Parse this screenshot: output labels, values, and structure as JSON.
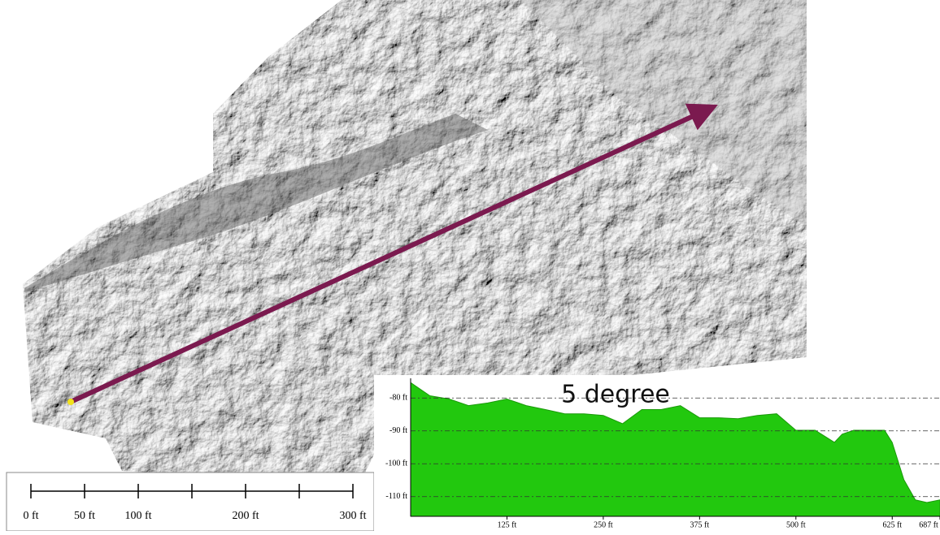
{
  "map": {
    "scale_labels": [
      "0 ft",
      "50 ft",
      "100 ft",
      "200 ft",
      "300 ft"
    ]
  },
  "chart_data": {
    "type": "area",
    "annotation": "5 degree",
    "color": "#22c80e",
    "x": [
      0,
      25,
      50,
      75,
      100,
      125,
      150,
      175,
      200,
      225,
      250,
      275,
      300,
      325,
      350,
      375,
      400,
      425,
      450,
      475,
      500,
      525,
      550,
      560,
      575,
      600,
      615,
      625,
      640,
      655,
      670,
      687
    ],
    "values": [
      -75.3,
      -79.3,
      -80.3,
      -82.3,
      -81.5,
      -80.3,
      -82.3,
      -83.5,
      -84.8,
      -84.8,
      -85.3,
      -87.8,
      -83.5,
      -83.5,
      -82.3,
      -86,
      -86,
      -86.3,
      -85.3,
      -84.8,
      -89.8,
      -89.8,
      -93.5,
      -91,
      -89.8,
      -89.8,
      -89.8,
      -93.5,
      -104.8,
      -111,
      -111.8,
      -111
    ],
    "xlim": [
      0,
      687
    ],
    "ylim": [
      -116,
      -74
    ],
    "xticks": [
      {
        "value": 125,
        "label": "125 ft"
      },
      {
        "value": 250,
        "label": "250 ft"
      },
      {
        "value": 375,
        "label": "375 ft"
      },
      {
        "value": 500,
        "label": "500 ft"
      },
      {
        "value": 625,
        "label": "625 ft"
      },
      {
        "value": 687,
        "label": "687 ft"
      }
    ],
    "yticks": [
      {
        "value": -80,
        "label": "-80 ft"
      },
      {
        "value": -90,
        "label": "-90 ft"
      },
      {
        "value": -100,
        "label": "-100 ft"
      },
      {
        "value": -110,
        "label": "-110 ft"
      }
    ],
    "grid": true
  }
}
